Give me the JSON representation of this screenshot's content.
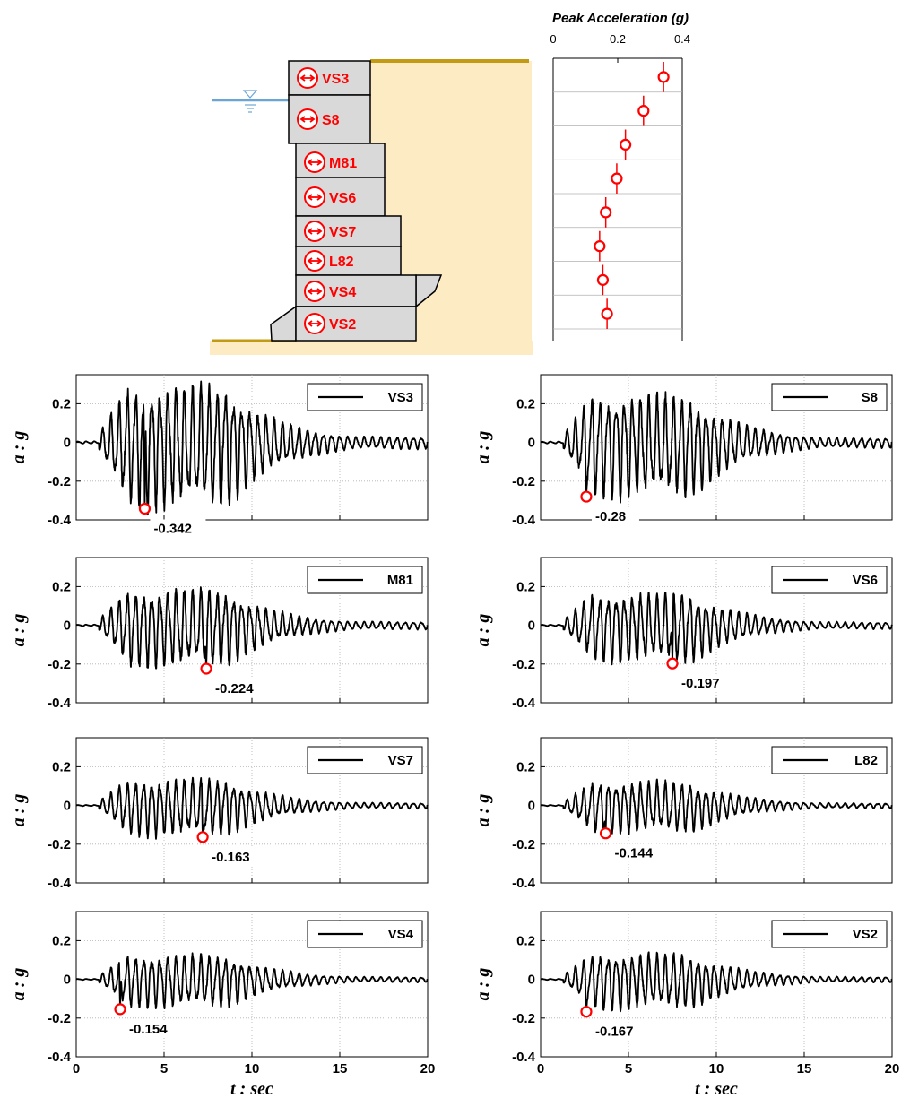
{
  "colors": {
    "sand": "#fdebc4",
    "ground_line": "#c39a14",
    "block_fill": "#d9d9d9",
    "sensor_red": "#ff0000",
    "water_blue": "#6aa5d6",
    "trace": "#000000"
  },
  "diagram": {
    "sensors": [
      "VS3",
      "S8",
      "M81",
      "VS6",
      "VS7",
      "L82",
      "VS4",
      "VS2"
    ]
  },
  "peak_chart": {
    "title": "Peak Acceleration (g)",
    "xticks": [
      "0",
      "0.2",
      "0.4"
    ]
  },
  "labels": {
    "ylabel": "a : g",
    "xlabel": "t : sec",
    "yticks": [
      "0.2",
      "0",
      "-0.2",
      "-0.4"
    ],
    "xticks": [
      "0",
      "5",
      "10",
      "15",
      "20"
    ]
  },
  "chart_data": [
    {
      "type": "scatter",
      "title": "Peak Acceleration (g)",
      "xlim": [
        0,
        0.4
      ],
      "x_ticks": [
        0,
        0.2,
        0.4
      ],
      "categories": [
        "VS3",
        "S8",
        "M81",
        "VS6",
        "VS7",
        "L82",
        "VS4",
        "VS2"
      ],
      "values": [
        0.342,
        0.28,
        0.224,
        0.197,
        0.163,
        0.144,
        0.154,
        0.167
      ],
      "grid": true
    },
    {
      "type": "line",
      "xlabel": "t : sec",
      "ylabel": "a : g",
      "xlim": [
        0,
        20
      ],
      "ylim": [
        -0.4,
        0.35
      ],
      "x_ticks": [
        0,
        5,
        10,
        15,
        20
      ],
      "y_ticks": [
        0.2,
        0,
        -0.2,
        -0.4
      ],
      "grid": true,
      "legend_position": "top-right",
      "panels": [
        {
          "name": "VS3",
          "peak": {
            "t": 3.9,
            "a": -0.342,
            "label": "-0.342"
          },
          "amp": 0.3
        },
        {
          "name": "S8",
          "peak": {
            "t": 2.6,
            "a": -0.28,
            "label": "-0.28"
          },
          "amp": 0.25
        },
        {
          "name": "M81",
          "peak": {
            "t": 7.4,
            "a": -0.224,
            "label": "-0.224"
          },
          "amp": 0.19
        },
        {
          "name": "VS6",
          "peak": {
            "t": 7.5,
            "a": -0.197,
            "label": "-0.197"
          },
          "amp": 0.17
        },
        {
          "name": "VS7",
          "peak": {
            "t": 7.2,
            "a": -0.163,
            "label": "-0.163"
          },
          "amp": 0.14
        },
        {
          "name": "L82",
          "peak": {
            "t": 3.7,
            "a": -0.144,
            "label": "-0.144"
          },
          "amp": 0.125
        },
        {
          "name": "VS4",
          "peak": {
            "t": 2.5,
            "a": -0.154,
            "label": "-0.154"
          },
          "amp": 0.13
        },
        {
          "name": "VS2",
          "peak": {
            "t": 2.6,
            "a": -0.167,
            "label": "-0.167"
          },
          "amp": 0.135
        }
      ]
    }
  ]
}
